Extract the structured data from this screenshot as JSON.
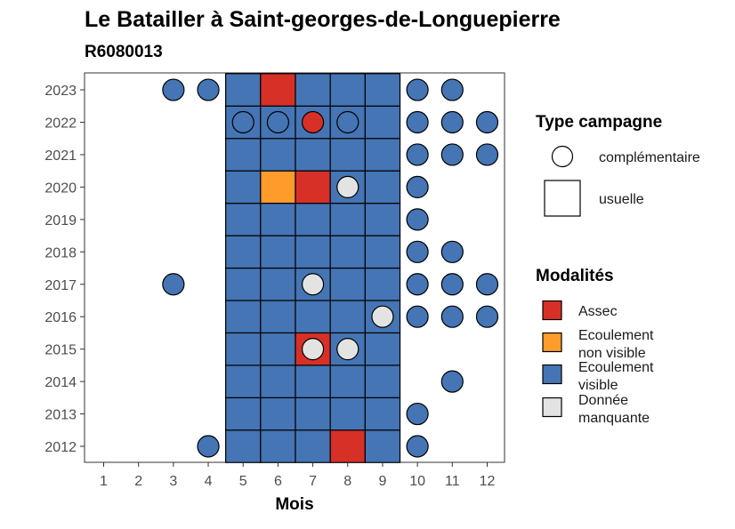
{
  "chart_data": {
    "type": "heatmap",
    "title": "Le Batailler à Saint-georges-de-Longuepierre",
    "subtitle": "R6080013",
    "xlabel": "Mois",
    "ylabel": "",
    "x_ticks": [
      "1",
      "2",
      "3",
      "4",
      "5",
      "6",
      "7",
      "8",
      "9",
      "10",
      "11",
      "12"
    ],
    "y_ticks": [
      "2012",
      "2013",
      "2014",
      "2015",
      "2016",
      "2017",
      "2018",
      "2019",
      "2020",
      "2021",
      "2022",
      "2023"
    ],
    "legend_campaign": {
      "title": "Type campagne",
      "items": [
        {
          "label": "complémentaire",
          "shape": "circle"
        },
        {
          "label": "usuelle",
          "shape": "square"
        }
      ]
    },
    "legend_modalites": {
      "title": "Modalités",
      "items": [
        {
          "key": "assec",
          "lines": [
            "Assec"
          ],
          "color": "#d73027"
        },
        {
          "key": "nonvisible",
          "lines": [
            "Ecoulement",
            "non visible"
          ],
          "color": "#fd9c2b"
        },
        {
          "key": "visible",
          "lines": [
            "Ecoulement",
            "visible"
          ],
          "color": "#4575b4"
        },
        {
          "key": "manquante",
          "lines": [
            "Donnée",
            "manquante"
          ],
          "color": "#e3e3e3"
        }
      ]
    },
    "usuelle_months": [
      5,
      6,
      7,
      8,
      9
    ],
    "usuelle_overrides": [
      {
        "year": 2023,
        "month": 6,
        "modalite": "assec"
      },
      {
        "year": 2020,
        "month": 6,
        "modalite": "nonvisible"
      },
      {
        "year": 2020,
        "month": 7,
        "modalite": "assec"
      },
      {
        "year": 2015,
        "month": 7,
        "modalite": "assec"
      },
      {
        "year": 2012,
        "month": 8,
        "modalite": "assec"
      }
    ],
    "complementaire": [
      {
        "year": 2023,
        "month": 3,
        "modalite": "visible"
      },
      {
        "year": 2023,
        "month": 4,
        "modalite": "visible"
      },
      {
        "year": 2023,
        "month": 10,
        "modalite": "visible"
      },
      {
        "year": 2023,
        "month": 11,
        "modalite": "visible"
      },
      {
        "year": 2022,
        "month": 5,
        "modalite": "visible"
      },
      {
        "year": 2022,
        "month": 6,
        "modalite": "visible"
      },
      {
        "year": 2022,
        "month": 7,
        "modalite": "assec"
      },
      {
        "year": 2022,
        "month": 8,
        "modalite": "visible"
      },
      {
        "year": 2022,
        "month": 10,
        "modalite": "visible"
      },
      {
        "year": 2022,
        "month": 11,
        "modalite": "visible"
      },
      {
        "year": 2022,
        "month": 12,
        "modalite": "visible"
      },
      {
        "year": 2021,
        "month": 10,
        "modalite": "visible"
      },
      {
        "year": 2021,
        "month": 11,
        "modalite": "visible"
      },
      {
        "year": 2021,
        "month": 12,
        "modalite": "visible"
      },
      {
        "year": 2020,
        "month": 8,
        "modalite": "manquante"
      },
      {
        "year": 2020,
        "month": 10,
        "modalite": "visible"
      },
      {
        "year": 2019,
        "month": 10,
        "modalite": "visible"
      },
      {
        "year": 2018,
        "month": 10,
        "modalite": "visible"
      },
      {
        "year": 2018,
        "month": 11,
        "modalite": "visible"
      },
      {
        "year": 2017,
        "month": 3,
        "modalite": "visible"
      },
      {
        "year": 2017,
        "month": 7,
        "modalite": "manquante"
      },
      {
        "year": 2017,
        "month": 10,
        "modalite": "visible"
      },
      {
        "year": 2017,
        "month": 11,
        "modalite": "visible"
      },
      {
        "year": 2017,
        "month": 12,
        "modalite": "visible"
      },
      {
        "year": 2016,
        "month": 9,
        "modalite": "manquante"
      },
      {
        "year": 2016,
        "month": 10,
        "modalite": "visible"
      },
      {
        "year": 2016,
        "month": 11,
        "modalite": "visible"
      },
      {
        "year": 2016,
        "month": 12,
        "modalite": "visible"
      },
      {
        "year": 2015,
        "month": 7,
        "modalite": "manquante"
      },
      {
        "year": 2015,
        "month": 8,
        "modalite": "manquante"
      },
      {
        "year": 2014,
        "month": 11,
        "modalite": "visible"
      },
      {
        "year": 2013,
        "month": 10,
        "modalite": "visible"
      },
      {
        "year": 2012,
        "month": 4,
        "modalite": "visible"
      },
      {
        "year": 2012,
        "month": 10,
        "modalite": "visible"
      }
    ]
  }
}
